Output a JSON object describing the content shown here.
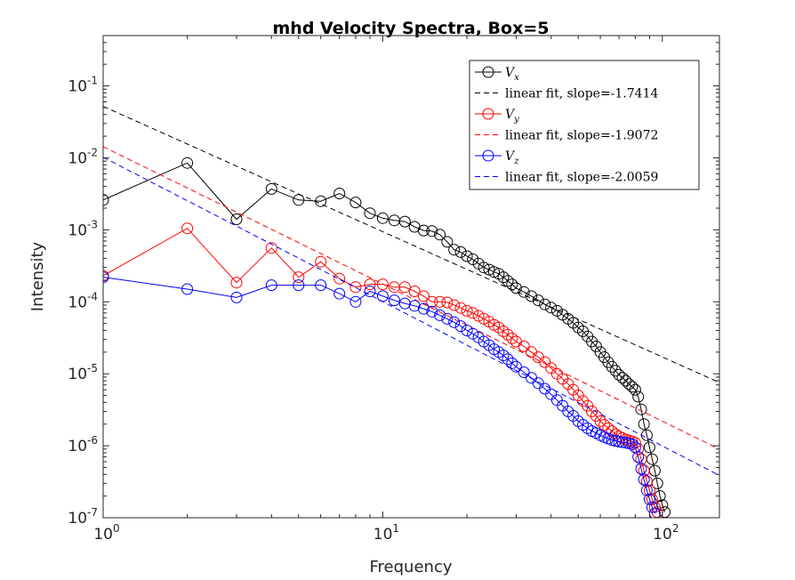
{
  "chart_data": {
    "type": "line",
    "title": "mhd Velocity Spectra, Box=5",
    "xlabel": "Frequency",
    "ylabel": "Intensity",
    "xscale": "log",
    "yscale": "log",
    "xlim": [
      1,
      160
    ],
    "ylim": [
      1e-07,
      0.5
    ],
    "x_ticks": [
      {
        "base": "10",
        "exp": "0",
        "value": 1
      },
      {
        "base": "10",
        "exp": "1",
        "value": 10
      },
      {
        "base": "10",
        "exp": "2",
        "value": 100
      }
    ],
    "y_ticks": [
      {
        "base": "10",
        "exp": "-7",
        "value": 1e-07
      },
      {
        "base": "10",
        "exp": "-6",
        "value": 1e-06
      },
      {
        "base": "10",
        "exp": "-5",
        "value": 1e-05
      },
      {
        "base": "10",
        "exp": "-4",
        "value": 0.0001
      },
      {
        "base": "10",
        "exp": "-3",
        "value": 0.001
      },
      {
        "base": "10",
        "exp": "-2",
        "value": 0.01
      },
      {
        "base": "10",
        "exp": "-1",
        "value": 0.1
      }
    ],
    "legend_position": "top-right",
    "grid": false,
    "series": [
      {
        "name_main": "V",
        "name_sub": "x",
        "color": "#000000",
        "marker": "circle",
        "points": [
          [
            1,
            0.0026
          ],
          [
            2,
            0.0085
          ],
          [
            3,
            0.0014
          ],
          [
            4,
            0.0037
          ],
          [
            5,
            0.0026
          ],
          [
            6,
            0.0025
          ],
          [
            7,
            0.0032
          ],
          [
            8,
            0.0024
          ],
          [
            9,
            0.0017
          ],
          [
            10,
            0.00145
          ],
          [
            11,
            0.00135
          ],
          [
            12,
            0.0013
          ],
          [
            13,
            0.0011
          ],
          [
            14,
            0.00098
          ],
          [
            15,
            0.00096
          ],
          [
            16,
            0.00086
          ],
          [
            17,
            0.00068
          ],
          [
            18,
            0.00053
          ],
          [
            19,
            0.00049
          ],
          [
            20,
            0.00043
          ],
          [
            21,
            0.00039
          ],
          [
            22,
            0.00034
          ],
          [
            23,
            0.0003
          ],
          [
            24,
            0.00028
          ],
          [
            25,
            0.00026
          ],
          [
            26,
            0.000245
          ],
          [
            27,
            0.00022
          ],
          [
            28,
            0.000195
          ],
          [
            29,
            0.000175
          ],
          [
            30,
            0.000155
          ],
          [
            32,
            0.000137
          ],
          [
            34,
            0.00012
          ],
          [
            36,
            0.000105
          ],
          [
            38,
            9.2e-05
          ],
          [
            40,
            8.3e-05
          ],
          [
            42,
            7.5e-05
          ],
          [
            44,
            6.6e-05
          ],
          [
            46,
            5.8e-05
          ],
          [
            48,
            5.1e-05
          ],
          [
            50,
            4.4e-05
          ],
          [
            52,
            3.9e-05
          ],
          [
            54,
            3.3e-05
          ],
          [
            56,
            2.8e-05
          ],
          [
            58,
            2.4e-05
          ],
          [
            60,
            2e-05
          ],
          [
            62,
            1.7e-05
          ],
          [
            64,
            1.45e-05
          ],
          [
            66,
            1.25e-05
          ],
          [
            68,
            1.1e-05
          ],
          [
            70,
            9.7e-06
          ],
          [
            72,
            8.8e-06
          ],
          [
            74,
            8e-06
          ],
          [
            76,
            7.2e-06
          ],
          [
            78,
            6.6e-06
          ],
          [
            80,
            6e-06
          ],
          [
            82,
            4.8e-06
          ],
          [
            84,
            3.2e-06
          ],
          [
            86,
            2e-06
          ],
          [
            88,
            1.4e-06
          ],
          [
            90,
            9.5e-07
          ],
          [
            92,
            6.5e-07
          ],
          [
            94,
            4.5e-07
          ],
          [
            96,
            3e-07
          ],
          [
            98,
            2e-07
          ],
          [
            100,
            1.5e-07
          ],
          [
            102,
            1.2e-07
          ]
        ]
      },
      {
        "name_main": "linear fit, slope=-1.7414",
        "name_sub": "",
        "color": "#000000",
        "line": "dashed",
        "fit": {
          "slope": -1.7414,
          "y_at_1": 0.052
        }
      },
      {
        "name_main": "V",
        "name_sub": "y",
        "color": "#ff0000",
        "marker": "circle",
        "points": [
          [
            1,
            0.00023
          ],
          [
            2,
            0.00105
          ],
          [
            3,
            0.000185
          ],
          [
            4,
            0.00056
          ],
          [
            5,
            0.00022
          ],
          [
            6,
            0.00036
          ],
          [
            7,
            0.00021
          ],
          [
            8,
            0.00016
          ],
          [
            9,
            0.000175
          ],
          [
            10,
            0.000175
          ],
          [
            11,
            0.00016
          ],
          [
            12,
            0.00016
          ],
          [
            13,
            0.00014
          ],
          [
            14,
            0.00012
          ],
          [
            15,
            0.0001
          ],
          [
            16,
            0.0001
          ],
          [
            17,
            9.8e-05
          ],
          [
            18,
            9e-05
          ],
          [
            19,
            8.2e-05
          ],
          [
            20,
            7.5e-05
          ],
          [
            21,
            7e-05
          ],
          [
            22,
            6.4e-05
          ],
          [
            23,
            5.8e-05
          ],
          [
            24,
            5.3e-05
          ],
          [
            25,
            4.8e-05
          ],
          [
            26,
            4.4e-05
          ],
          [
            27,
            3.9e-05
          ],
          [
            28,
            3.5e-05
          ],
          [
            29,
            3.1e-05
          ],
          [
            30,
            2.8e-05
          ],
          [
            32,
            2.4e-05
          ],
          [
            34,
            2e-05
          ],
          [
            36,
            1.7e-05
          ],
          [
            38,
            1.45e-05
          ],
          [
            40,
            1.2e-05
          ],
          [
            42,
            1e-05
          ],
          [
            44,
            8.5e-06
          ],
          [
            46,
            7.2e-06
          ],
          [
            48,
            6e-06
          ],
          [
            50,
            5e-06
          ],
          [
            52,
            4.2e-06
          ],
          [
            54,
            3.6e-06
          ],
          [
            56,
            3e-06
          ],
          [
            58,
            2.6e-06
          ],
          [
            60,
            2.2e-06
          ],
          [
            62,
            1.95e-06
          ],
          [
            64,
            1.75e-06
          ],
          [
            66,
            1.6e-06
          ],
          [
            68,
            1.45e-06
          ],
          [
            70,
            1.35e-06
          ],
          [
            72,
            1.28e-06
          ],
          [
            74,
            1.22e-06
          ],
          [
            76,
            1.18e-06
          ],
          [
            78,
            1.15e-06
          ],
          [
            80,
            1.1e-06
          ],
          [
            82,
            9e-07
          ],
          [
            84,
            6.5e-07
          ],
          [
            86,
            4.5e-07
          ],
          [
            88,
            3.2e-07
          ],
          [
            90,
            2.4e-07
          ],
          [
            92,
            1.8e-07
          ],
          [
            94,
            1.4e-07
          ],
          [
            96,
            1.2e-07
          ]
        ]
      },
      {
        "name_main": "linear fit, slope=-1.9072",
        "name_sub": "",
        "color": "#ff0000",
        "line": "dashed",
        "fit": {
          "slope": -1.9072,
          "y_at_1": 0.0143
        }
      },
      {
        "name_main": "V",
        "name_sub": "z",
        "color": "#0000ff",
        "marker": "circle",
        "points": [
          [
            1,
            0.00022
          ],
          [
            2,
            0.00015
          ],
          [
            3,
            0.000115
          ],
          [
            4,
            0.00017
          ],
          [
            5,
            0.00017
          ],
          [
            6,
            0.00017
          ],
          [
            7,
            0.00013
          ],
          [
            8,
            0.0001
          ],
          [
            9,
            0.00014
          ],
          [
            10,
            0.00012
          ],
          [
            11,
            0.000105
          ],
          [
            12,
            9.5e-05
          ],
          [
            13,
            8.8e-05
          ],
          [
            14,
            8e-05
          ],
          [
            15,
            7.3e-05
          ],
          [
            16,
            6.5e-05
          ],
          [
            17,
            5.8e-05
          ],
          [
            18,
            5.2e-05
          ],
          [
            19,
            4.6e-05
          ],
          [
            20,
            4e-05
          ],
          [
            21,
            3.6e-05
          ],
          [
            22,
            3.2e-05
          ],
          [
            23,
            2.8e-05
          ],
          [
            24,
            2.5e-05
          ],
          [
            25,
            2.2e-05
          ],
          [
            26,
            2e-05
          ],
          [
            27,
            1.8e-05
          ],
          [
            28,
            1.6e-05
          ],
          [
            29,
            1.4e-05
          ],
          [
            30,
            1.25e-05
          ],
          [
            32,
            1.05e-05
          ],
          [
            34,
            8.8e-06
          ],
          [
            36,
            7.4e-06
          ],
          [
            38,
            6.2e-06
          ],
          [
            40,
            5.2e-06
          ],
          [
            42,
            4.3e-06
          ],
          [
            44,
            3.6e-06
          ],
          [
            46,
            3e-06
          ],
          [
            48,
            2.6e-06
          ],
          [
            50,
            2.2e-06
          ],
          [
            52,
            1.95e-06
          ],
          [
            54,
            1.75e-06
          ],
          [
            56,
            1.6e-06
          ],
          [
            58,
            1.5e-06
          ],
          [
            60,
            1.4e-06
          ],
          [
            62,
            1.32e-06
          ],
          [
            64,
            1.26e-06
          ],
          [
            66,
            1.2e-06
          ],
          [
            68,
            1.17e-06
          ],
          [
            70,
            1.14e-06
          ],
          [
            72,
            1.12e-06
          ],
          [
            74,
            1.1e-06
          ],
          [
            76,
            1.08e-06
          ],
          [
            78,
            1.05e-06
          ],
          [
            80,
            9.5e-07
          ],
          [
            82,
            7e-07
          ],
          [
            84,
            4.8e-07
          ],
          [
            86,
            3.4e-07
          ],
          [
            88,
            2.4e-07
          ],
          [
            90,
            1.8e-07
          ],
          [
            92,
            1.4e-07
          ],
          [
            94,
            1.15e-07
          ]
        ]
      },
      {
        "name_main": "linear fit, slope=-2.0059",
        "name_sub": "",
        "color": "#0000ff",
        "line": "dashed",
        "fit": {
          "slope": -2.0059,
          "y_at_1": 0.0102
        }
      }
    ]
  }
}
